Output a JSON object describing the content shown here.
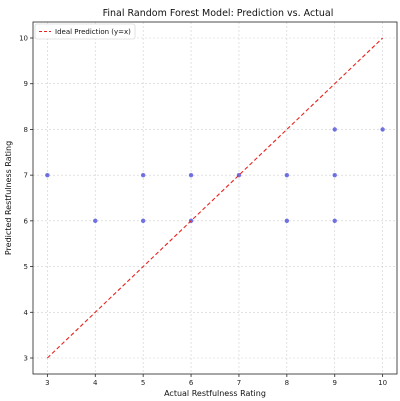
{
  "chart_data": {
    "type": "scatter",
    "title": "Final Random Forest Model: Prediction vs. Actual",
    "xlabel": "Actual Restfulness Rating",
    "ylabel": "Predicted Restfulness Rating",
    "xlim": [
      2.7,
      10.3
    ],
    "ylim": [
      2.65,
      10.35
    ],
    "xticks": [
      "3",
      "4",
      "5",
      "6",
      "7",
      "8",
      "9",
      "10"
    ],
    "yticks": [
      "3",
      "4",
      "5",
      "6",
      "7",
      "8",
      "9",
      "10"
    ],
    "grid": true,
    "legend": {
      "placement": "top-left",
      "entries": [
        "Ideal Prediction (y=x)"
      ]
    },
    "series": [
      {
        "kind": "scatter",
        "color": "#3b3fd8",
        "points": [
          {
            "x": 3,
            "y": 7
          },
          {
            "x": 4,
            "y": 6
          },
          {
            "x": 5,
            "y": 7
          },
          {
            "x": 5,
            "y": 6
          },
          {
            "x": 6,
            "y": 7
          },
          {
            "x": 6,
            "y": 6
          },
          {
            "x": 7,
            "y": 7
          },
          {
            "x": 8,
            "y": 7
          },
          {
            "x": 8,
            "y": 6
          },
          {
            "x": 9,
            "y": 8
          },
          {
            "x": 9,
            "y": 7
          },
          {
            "x": 9,
            "y": 6
          },
          {
            "x": 10,
            "y": 8
          }
        ]
      },
      {
        "kind": "line",
        "name": "Ideal Prediction (y=x)",
        "color": "#e8231f",
        "style": "dashed",
        "x": [
          3,
          10
        ],
        "y": [
          3,
          10
        ]
      }
    ]
  }
}
